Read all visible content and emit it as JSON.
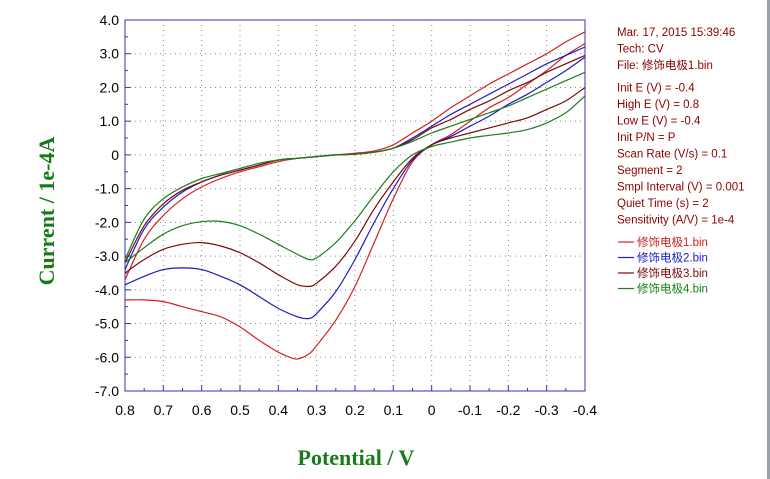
{
  "chart_data": {
    "type": "line",
    "xlabel": "Potential / V",
    "ylabel": "Current / 1e-4A",
    "xlim": [
      0.8,
      -0.4
    ],
    "ylim": [
      -7.0,
      4.0
    ],
    "x_ticks": [
      "0.8",
      "0.7",
      "0.6",
      "0.5",
      "0.4",
      "0.3",
      "0.2",
      "0.1",
      "0",
      "-0.1",
      "-0.2",
      "-0.3",
      "-0.4"
    ],
    "y_ticks": [
      "4.0",
      "3.0",
      "2.0",
      "1.0",
      "0",
      "-1.0",
      "-2.0",
      "-3.0",
      "-4.0",
      "-5.0",
      "-6.0",
      "-7.0"
    ],
    "grid": true,
    "legend_position": "right",
    "info": [
      "Mar. 17, 2015   15:39:46",
      "Tech: CV",
      "File: 修饰电极1.bin",
      "",
      "Init E (V) = -0.4",
      "High E (V) = 0.8",
      "Low E (V) = -0.4",
      "Init P/N = P",
      "Scan Rate (V/s) = 0.1",
      "Segment = 2",
      "Smpl Interval (V) = 0.001",
      "Quiet Time (s) = 2",
      "Sensitivity (A/V) = 1e-4"
    ],
    "series": [
      {
        "name": "修饰电极1.bin",
        "color": "#d42020",
        "upper": [
          [
            -0.4,
            3.65
          ],
          [
            -0.35,
            3.35
          ],
          [
            -0.3,
            3.0
          ],
          [
            -0.25,
            2.7
          ],
          [
            -0.2,
            2.4
          ],
          [
            -0.15,
            2.1
          ],
          [
            -0.1,
            1.75
          ],
          [
            -0.05,
            1.4
          ],
          [
            0.0,
            1.0
          ],
          [
            0.05,
            0.65
          ],
          [
            0.1,
            0.3
          ],
          [
            0.15,
            0.12
          ],
          [
            0.2,
            0.05
          ],
          [
            0.25,
            0.0
          ],
          [
            0.3,
            -0.05
          ],
          [
            0.35,
            -0.1
          ],
          [
            0.4,
            -0.2
          ],
          [
            0.45,
            -0.35
          ],
          [
            0.5,
            -0.5
          ],
          [
            0.55,
            -0.7
          ],
          [
            0.6,
            -0.95
          ],
          [
            0.65,
            -1.3
          ],
          [
            0.7,
            -1.8
          ],
          [
            0.75,
            -2.5
          ],
          [
            0.8,
            -3.7
          ]
        ],
        "lower": [
          [
            0.8,
            -4.3
          ],
          [
            0.75,
            -4.3
          ],
          [
            0.7,
            -4.35
          ],
          [
            0.65,
            -4.5
          ],
          [
            0.6,
            -4.65
          ],
          [
            0.55,
            -4.8
          ],
          [
            0.5,
            -5.1
          ],
          [
            0.45,
            -5.5
          ],
          [
            0.4,
            -5.85
          ],
          [
            0.37,
            -6.0
          ],
          [
            0.35,
            -6.05
          ],
          [
            0.32,
            -5.9
          ],
          [
            0.3,
            -5.65
          ],
          [
            0.25,
            -4.9
          ],
          [
            0.2,
            -3.9
          ],
          [
            0.15,
            -2.6
          ],
          [
            0.1,
            -1.3
          ],
          [
            0.05,
            -0.2
          ],
          [
            0.0,
            0.3
          ],
          [
            -0.05,
            0.6
          ],
          [
            -0.1,
            1.0
          ],
          [
            -0.15,
            1.4
          ],
          [
            -0.2,
            1.7
          ],
          [
            -0.25,
            2.1
          ],
          [
            -0.3,
            2.5
          ],
          [
            -0.35,
            2.95
          ],
          [
            -0.4,
            3.3
          ]
        ]
      },
      {
        "name": "修饰电极2.bin",
        "color": "#1c1cc8",
        "upper": [
          [
            -0.4,
            3.2
          ],
          [
            -0.35,
            2.95
          ],
          [
            -0.3,
            2.7
          ],
          [
            -0.25,
            2.4
          ],
          [
            -0.2,
            2.1
          ],
          [
            -0.15,
            1.8
          ],
          [
            -0.1,
            1.5
          ],
          [
            -0.05,
            1.2
          ],
          [
            0.0,
            0.85
          ],
          [
            0.05,
            0.5
          ],
          [
            0.1,
            0.2
          ],
          [
            0.15,
            0.08
          ],
          [
            0.2,
            0.02
          ],
          [
            0.25,
            0.0
          ],
          [
            0.3,
            -0.05
          ],
          [
            0.35,
            -0.1
          ],
          [
            0.4,
            -0.15
          ],
          [
            0.45,
            -0.3
          ],
          [
            0.5,
            -0.45
          ],
          [
            0.55,
            -0.6
          ],
          [
            0.6,
            -0.8
          ],
          [
            0.65,
            -1.1
          ],
          [
            0.7,
            -1.55
          ],
          [
            0.75,
            -2.2
          ],
          [
            0.8,
            -3.4
          ]
        ],
        "lower": [
          [
            0.8,
            -3.85
          ],
          [
            0.75,
            -3.6
          ],
          [
            0.7,
            -3.4
          ],
          [
            0.65,
            -3.35
          ],
          [
            0.6,
            -3.4
          ],
          [
            0.55,
            -3.6
          ],
          [
            0.5,
            -3.85
          ],
          [
            0.45,
            -4.2
          ],
          [
            0.4,
            -4.55
          ],
          [
            0.35,
            -4.8
          ],
          [
            0.32,
            -4.85
          ],
          [
            0.3,
            -4.7
          ],
          [
            0.25,
            -4.05
          ],
          [
            0.2,
            -3.1
          ],
          [
            0.15,
            -2.0
          ],
          [
            0.1,
            -1.0
          ],
          [
            0.05,
            -0.15
          ],
          [
            0.0,
            0.3
          ],
          [
            -0.05,
            0.55
          ],
          [
            -0.1,
            0.85
          ],
          [
            -0.15,
            1.15
          ],
          [
            -0.2,
            1.5
          ],
          [
            -0.25,
            1.8
          ],
          [
            -0.3,
            2.15
          ],
          [
            -0.35,
            2.5
          ],
          [
            -0.4,
            2.9
          ]
        ]
      },
      {
        "name": "修饰电极3.bin",
        "color": "#7a0a0a",
        "upper": [
          [
            -0.4,
            2.95
          ],
          [
            -0.35,
            2.7
          ],
          [
            -0.3,
            2.45
          ],
          [
            -0.25,
            2.15
          ],
          [
            -0.2,
            1.9
          ],
          [
            -0.15,
            1.6
          ],
          [
            -0.1,
            1.35
          ],
          [
            -0.05,
            1.05
          ],
          [
            0.0,
            0.8
          ],
          [
            0.05,
            0.45
          ],
          [
            0.1,
            0.2
          ],
          [
            0.15,
            0.08
          ],
          [
            0.2,
            0.02
          ],
          [
            0.25,
            0.0
          ],
          [
            0.3,
            -0.05
          ],
          [
            0.35,
            -0.1
          ],
          [
            0.4,
            -0.15
          ],
          [
            0.45,
            -0.3
          ],
          [
            0.5,
            -0.45
          ],
          [
            0.55,
            -0.6
          ],
          [
            0.6,
            -0.8
          ],
          [
            0.65,
            -1.05
          ],
          [
            0.7,
            -1.45
          ],
          [
            0.75,
            -2.1
          ],
          [
            0.8,
            -3.2
          ]
        ],
        "lower": [
          [
            0.8,
            -3.5
          ],
          [
            0.75,
            -3.1
          ],
          [
            0.7,
            -2.8
          ],
          [
            0.65,
            -2.65
          ],
          [
            0.6,
            -2.6
          ],
          [
            0.55,
            -2.7
          ],
          [
            0.5,
            -2.9
          ],
          [
            0.45,
            -3.2
          ],
          [
            0.4,
            -3.55
          ],
          [
            0.35,
            -3.85
          ],
          [
            0.32,
            -3.9
          ],
          [
            0.3,
            -3.8
          ],
          [
            0.25,
            -3.3
          ],
          [
            0.2,
            -2.55
          ],
          [
            0.15,
            -1.6
          ],
          [
            0.1,
            -0.8
          ],
          [
            0.05,
            -0.1
          ],
          [
            0.0,
            0.3
          ],
          [
            -0.05,
            0.5
          ],
          [
            -0.1,
            0.65
          ],
          [
            -0.15,
            0.8
          ],
          [
            -0.2,
            0.95
          ],
          [
            -0.25,
            1.1
          ],
          [
            -0.3,
            1.35
          ],
          [
            -0.35,
            1.6
          ],
          [
            -0.4,
            2.0
          ]
        ]
      },
      {
        "name": "修饰电极4.bin",
        "color": "#1a801a",
        "upper": [
          [
            -0.4,
            2.45
          ],
          [
            -0.35,
            2.2
          ],
          [
            -0.3,
            1.95
          ],
          [
            -0.25,
            1.7
          ],
          [
            -0.2,
            1.45
          ],
          [
            -0.15,
            1.25
          ],
          [
            -0.1,
            1.05
          ],
          [
            -0.05,
            0.85
          ],
          [
            0.0,
            0.65
          ],
          [
            0.05,
            0.4
          ],
          [
            0.1,
            0.2
          ],
          [
            0.15,
            0.08
          ],
          [
            0.2,
            0.02
          ],
          [
            0.25,
            0.0
          ],
          [
            0.3,
            -0.05
          ],
          [
            0.35,
            -0.1
          ],
          [
            0.4,
            -0.15
          ],
          [
            0.45,
            -0.25
          ],
          [
            0.5,
            -0.4
          ],
          [
            0.55,
            -0.55
          ],
          [
            0.6,
            -0.7
          ],
          [
            0.65,
            -0.95
          ],
          [
            0.7,
            -1.3
          ],
          [
            0.75,
            -1.9
          ],
          [
            0.8,
            -3.1
          ]
        ],
        "lower": [
          [
            0.8,
            -3.2
          ],
          [
            0.75,
            -2.75
          ],
          [
            0.7,
            -2.35
          ],
          [
            0.65,
            -2.1
          ],
          [
            0.6,
            -1.98
          ],
          [
            0.55,
            -1.97
          ],
          [
            0.5,
            -2.1
          ],
          [
            0.45,
            -2.35
          ],
          [
            0.4,
            -2.65
          ],
          [
            0.35,
            -2.95
          ],
          [
            0.32,
            -3.1
          ],
          [
            0.3,
            -3.05
          ],
          [
            0.25,
            -2.6
          ],
          [
            0.2,
            -1.95
          ],
          [
            0.15,
            -1.2
          ],
          [
            0.1,
            -0.5
          ],
          [
            0.05,
            0.0
          ],
          [
            0.0,
            0.25
          ],
          [
            -0.05,
            0.38
          ],
          [
            -0.1,
            0.5
          ],
          [
            -0.15,
            0.58
          ],
          [
            -0.2,
            0.65
          ],
          [
            -0.25,
            0.75
          ],
          [
            -0.3,
            0.95
          ],
          [
            -0.35,
            1.25
          ],
          [
            -0.4,
            1.75
          ]
        ]
      }
    ]
  }
}
